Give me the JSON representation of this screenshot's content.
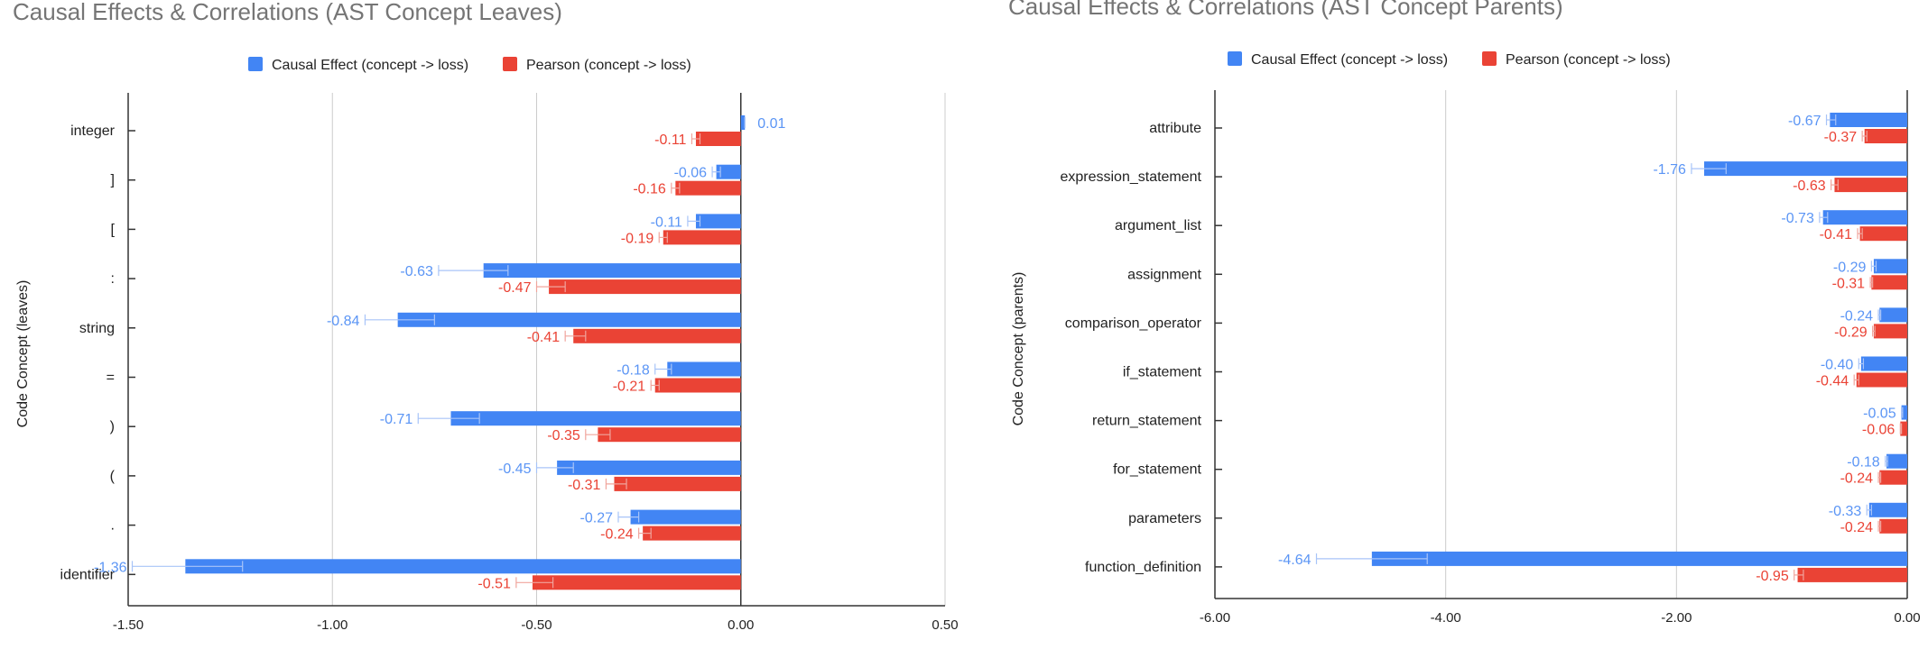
{
  "colors": {
    "causal": "#4285f4",
    "causal_label": "#5b95f5",
    "pearson": "#ea4335",
    "pearson_label": "#ea4335",
    "axis": "#333333",
    "grid": "#cccccc",
    "title": "#757575",
    "text": "#222222"
  },
  "legend": {
    "causal": "Causal Effect (concept -> loss)",
    "pearson": "Pearson (concept -> loss)",
    "position": "top"
  },
  "chart_data": [
    {
      "type": "bar",
      "orientation": "horizontal",
      "title": "Causal Effects & Correlations (AST Concept Leaves)",
      "xlabel": "",
      "ylabel": "Code Concept (leaves)",
      "xlim": [
        -1.5,
        0.5
      ],
      "xticks": [
        "-1.50",
        "-1.00",
        "-0.50",
        "0.00",
        "0.50"
      ],
      "xtick_values": [
        -1.5,
        -1.0,
        -0.5,
        0.0,
        0.5
      ],
      "grid": true,
      "categories": [
        "integer",
        "]",
        "[",
        ":",
        "string",
        "=",
        ")",
        "(",
        ".",
        "identifier"
      ],
      "series": [
        {
          "name": "Causal Effect (concept -> loss)",
          "values": [
            0.01,
            -0.06,
            -0.11,
            -0.63,
            -0.84,
            -0.18,
            -0.71,
            -0.45,
            -0.27,
            -1.36
          ],
          "labels": [
            "0.01",
            "-0.06",
            "-0.11",
            "-0.63",
            "-0.84",
            "-0.18",
            "-0.71",
            "-0.45",
            "-0.27",
            "-1.36"
          ],
          "error_low": [
            0.01,
            -0.07,
            -0.13,
            -0.74,
            -0.92,
            -0.21,
            -0.79,
            -0.5,
            -0.3,
            -1.49
          ],
          "error_high": [
            0.01,
            -0.05,
            -0.1,
            -0.57,
            -0.75,
            -0.17,
            -0.64,
            -0.41,
            -0.25,
            -1.22
          ]
        },
        {
          "name": "Pearson (concept -> loss)",
          "values": [
            -0.11,
            -0.16,
            -0.19,
            -0.47,
            -0.41,
            -0.21,
            -0.35,
            -0.31,
            -0.24,
            -0.51
          ],
          "labels": [
            "-0.11",
            "-0.16",
            "-0.19",
            "-0.47",
            "-0.41",
            "-0.21",
            "-0.35",
            "-0.31",
            "-0.24",
            "-0.51"
          ],
          "error_low": [
            -0.12,
            -0.17,
            -0.2,
            -0.5,
            -0.43,
            -0.22,
            -0.38,
            -0.33,
            -0.25,
            -0.55
          ],
          "error_high": [
            -0.1,
            -0.15,
            -0.18,
            -0.43,
            -0.38,
            -0.2,
            -0.32,
            -0.28,
            -0.22,
            -0.46
          ]
        }
      ]
    },
    {
      "type": "bar",
      "orientation": "horizontal",
      "title": "Causal Effects & Correlations (AST Concept Parents)",
      "xlabel": "",
      "ylabel": "Code Concept (parents)",
      "xlim": [
        -6,
        0
      ],
      "xticks": [
        "-6.00",
        "-4.00",
        "-2.00",
        "0.00"
      ],
      "xtick_values": [
        -6,
        -4,
        -2,
        0
      ],
      "grid": true,
      "categories": [
        "attribute",
        "expression_statement",
        "argument_list",
        "assignment",
        "comparison_operator",
        "if_statement",
        "return_statement",
        "for_statement",
        "parameters",
        "function_definition"
      ],
      "series": [
        {
          "name": "Causal Effect (concept -> loss)",
          "values": [
            -0.67,
            -1.76,
            -0.73,
            -0.29,
            -0.24,
            -0.4,
            -0.05,
            -0.18,
            -0.33,
            -4.64
          ],
          "labels": [
            "-0.67",
            "-1.76",
            "-0.73",
            "-0.29",
            "-0.24",
            "-0.40",
            "-0.05",
            "-0.18",
            "-0.33",
            "-4.64"
          ],
          "error_low": [
            -0.7,
            -1.87,
            -0.76,
            -0.31,
            -0.25,
            -0.42,
            -0.05,
            -0.19,
            -0.35,
            -5.12
          ],
          "error_high": [
            -0.62,
            -1.57,
            -0.69,
            -0.27,
            -0.23,
            -0.38,
            -0.04,
            -0.17,
            -0.31,
            -4.16
          ]
        },
        {
          "name": "Pearson (concept -> loss)",
          "values": [
            -0.37,
            -0.63,
            -0.41,
            -0.31,
            -0.29,
            -0.44,
            -0.06,
            -0.24,
            -0.24,
            -0.95
          ],
          "labels": [
            "-0.37",
            "-0.63",
            "-0.41",
            "-0.31",
            "-0.29",
            "-0.44",
            "-0.06",
            "-0.24",
            "-0.24",
            "-0.95"
          ],
          "error_low": [
            -0.39,
            -0.66,
            -0.43,
            -0.32,
            -0.3,
            -0.46,
            -0.06,
            -0.25,
            -0.25,
            -0.98
          ],
          "error_high": [
            -0.35,
            -0.6,
            -0.39,
            -0.3,
            -0.28,
            -0.42,
            -0.05,
            -0.23,
            -0.23,
            -0.9
          ]
        }
      ]
    }
  ]
}
